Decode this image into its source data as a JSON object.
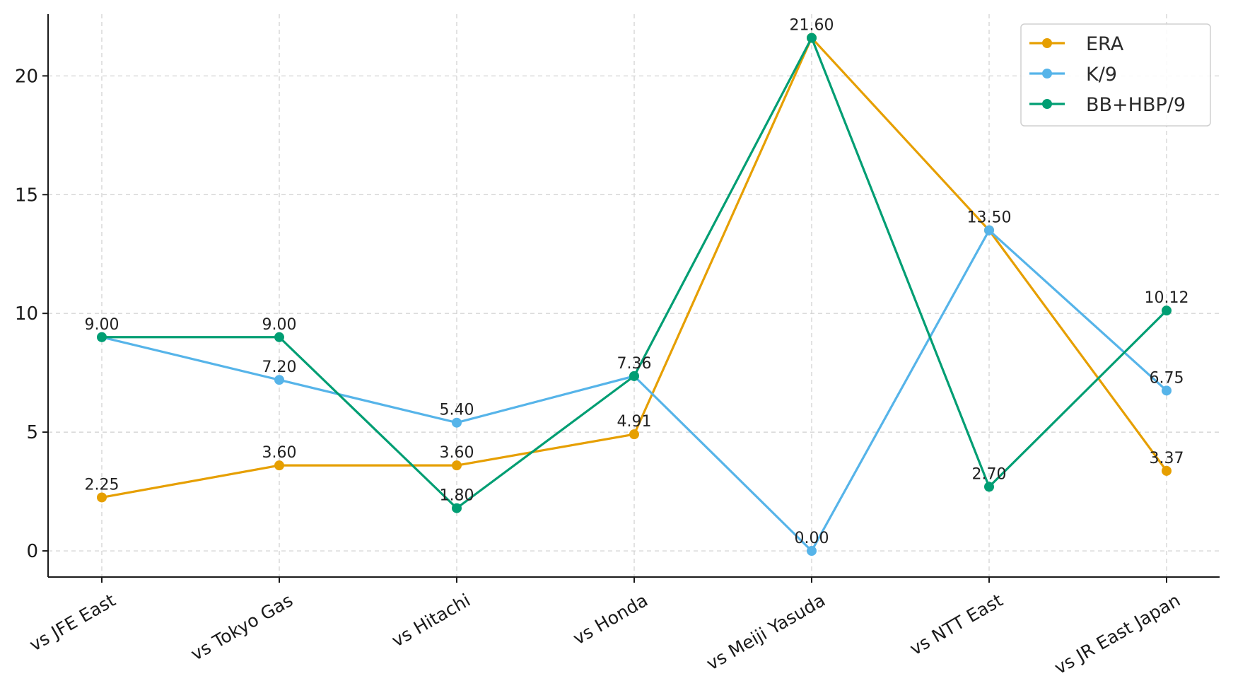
{
  "chart_data": {
    "type": "line",
    "title": "",
    "xlabel": "",
    "ylabel": "",
    "categories": [
      "vs JFE East",
      "vs Tokyo Gas",
      "vs Hitachi",
      "vs Honda",
      "vs Meiji Yasuda",
      "vs NTT East",
      "vs JR East Japan"
    ],
    "ylim": [
      -1.1,
      22.6
    ],
    "yticks": [
      0,
      5,
      10,
      15,
      20
    ],
    "grid": true,
    "legend_position": "top-right",
    "series": [
      {
        "name": "ERA",
        "color": "#E69F00",
        "values": [
          2.25,
          3.6,
          3.6,
          4.91,
          21.6,
          13.5,
          3.37
        ],
        "labels": [
          "2.25",
          "3.60",
          "3.60",
          "4.91",
          "",
          "",
          "3.37"
        ]
      },
      {
        "name": "K/9",
        "color": "#56B4E9",
        "values": [
          9.0,
          7.2,
          5.4,
          7.36,
          0.0,
          13.5,
          6.75
        ],
        "labels": [
          "",
          "7.20",
          "5.40",
          "",
          "0.00",
          "13.50",
          "6.75"
        ]
      },
      {
        "name": "BB+HBP/9",
        "color": "#009E73",
        "values": [
          9.0,
          9.0,
          1.8,
          7.36,
          21.6,
          2.7,
          10.12
        ],
        "labels": [
          "9.00",
          "9.00",
          "1.80",
          "7.36",
          "21.60",
          "2.70",
          "10.12"
        ]
      }
    ]
  }
}
